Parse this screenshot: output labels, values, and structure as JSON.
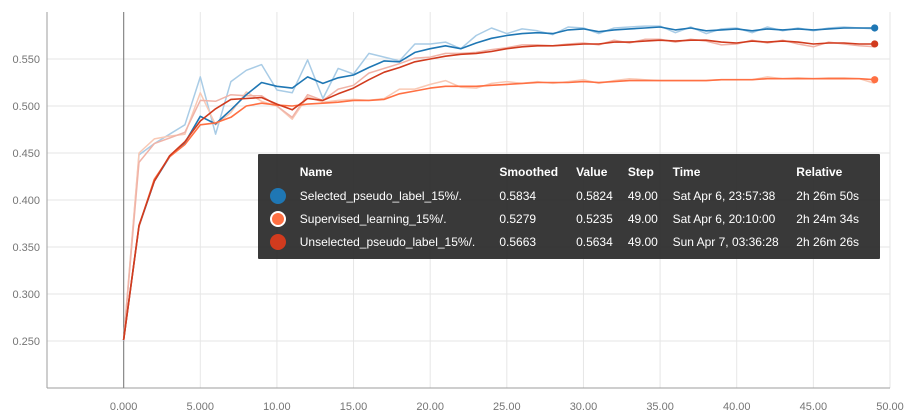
{
  "chart_data": {
    "type": "line",
    "xlim": [
      -5,
      50
    ],
    "ylim": [
      0.2,
      0.6
    ],
    "x_ticks": [
      "0.000",
      "5.000",
      "10.00",
      "15.00",
      "20.00",
      "25.00",
      "30.00",
      "35.00",
      "40.00",
      "45.00",
      "50.00"
    ],
    "x_tick_values": [
      0,
      5,
      10,
      15,
      20,
      25,
      30,
      35,
      40,
      45,
      50
    ],
    "y_ticks": [
      "0.250",
      "0.300",
      "0.350",
      "0.400",
      "0.450",
      "0.500",
      "0.550"
    ],
    "y_tick_values": [
      0.25,
      0.3,
      0.35,
      0.4,
      0.45,
      0.5,
      0.55
    ],
    "grid": true,
    "series": [
      {
        "name": "Selected_pseudo_label_15%/.",
        "color": "#1f77b4",
        "raw_color": "#a9cce6",
        "smoothed": [
          0.251,
          0.372,
          0.42,
          0.446,
          0.461,
          0.489,
          0.481,
          0.496,
          0.512,
          0.525,
          0.521,
          0.519,
          0.531,
          0.524,
          0.53,
          0.533,
          0.541,
          0.548,
          0.547,
          0.557,
          0.561,
          0.564,
          0.561,
          0.567,
          0.572,
          0.575,
          0.577,
          0.578,
          0.577,
          0.581,
          0.582,
          0.579,
          0.581,
          0.582,
          0.583,
          0.584,
          0.581,
          0.583,
          0.58,
          0.581,
          0.582,
          0.58,
          0.582,
          0.581,
          0.582,
          0.581,
          0.582,
          0.583,
          0.583,
          0.583
        ],
        "raw": [
          0.25,
          0.448,
          0.46,
          0.47,
          0.48,
          0.531,
          0.47,
          0.526,
          0.538,
          0.544,
          0.517,
          0.514,
          0.549,
          0.508,
          0.54,
          0.534,
          0.556,
          0.552,
          0.548,
          0.566,
          0.566,
          0.568,
          0.561,
          0.575,
          0.583,
          0.577,
          0.582,
          0.58,
          0.576,
          0.584,
          0.583,
          0.577,
          0.583,
          0.584,
          0.585,
          0.585,
          0.578,
          0.584,
          0.577,
          0.582,
          0.583,
          0.578,
          0.584,
          0.58,
          0.583,
          0.58,
          0.583,
          0.584,
          0.583,
          0.582
        ]
      },
      {
        "name": "Supervised_learning_15%/.",
        "color": "#ff7043",
        "raw_color": "#f9c9b5",
        "smoothed": [
          0.251,
          0.372,
          0.422,
          0.446,
          0.459,
          0.48,
          0.482,
          0.488,
          0.5,
          0.503,
          0.501,
          0.5,
          0.502,
          0.503,
          0.504,
          0.506,
          0.506,
          0.507,
          0.513,
          0.516,
          0.519,
          0.521,
          0.521,
          0.521,
          0.522,
          0.523,
          0.524,
          0.525,
          0.525,
          0.525,
          0.526,
          0.525,
          0.526,
          0.527,
          0.527,
          0.527,
          0.527,
          0.527,
          0.527,
          0.528,
          0.528,
          0.528,
          0.529,
          0.529,
          0.529,
          0.529,
          0.529,
          0.529,
          0.529,
          0.528
        ],
        "raw": [
          0.251,
          0.45,
          0.465,
          0.468,
          0.47,
          0.514,
          0.48,
          0.493,
          0.515,
          0.505,
          0.5,
          0.486,
          0.51,
          0.504,
          0.506,
          0.507,
          0.506,
          0.508,
          0.518,
          0.518,
          0.523,
          0.527,
          0.52,
          0.519,
          0.524,
          0.526,
          0.524,
          0.526,
          0.524,
          0.526,
          0.528,
          0.524,
          0.527,
          0.529,
          0.528,
          0.527,
          0.527,
          0.527,
          0.527,
          0.528,
          0.528,
          0.528,
          0.531,
          0.529,
          0.53,
          0.529,
          0.53,
          0.53,
          0.529,
          0.524
        ]
      },
      {
        "name": "Unselected_pseudo_label_15%/.",
        "color": "#d13b1e",
        "raw_color": "#f0b3a7",
        "smoothed": [
          0.251,
          0.373,
          0.42,
          0.447,
          0.462,
          0.484,
          0.497,
          0.507,
          0.508,
          0.509,
          0.502,
          0.496,
          0.508,
          0.506,
          0.513,
          0.519,
          0.528,
          0.536,
          0.541,
          0.547,
          0.55,
          0.553,
          0.555,
          0.556,
          0.558,
          0.561,
          0.563,
          0.564,
          0.564,
          0.565,
          0.566,
          0.566,
          0.568,
          0.568,
          0.569,
          0.57,
          0.569,
          0.57,
          0.57,
          0.568,
          0.567,
          0.569,
          0.568,
          0.569,
          0.568,
          0.566,
          0.567,
          0.567,
          0.566,
          0.566
        ],
        "raw": [
          0.251,
          0.44,
          0.46,
          0.466,
          0.472,
          0.506,
          0.505,
          0.512,
          0.511,
          0.511,
          0.5,
          0.488,
          0.512,
          0.506,
          0.518,
          0.522,
          0.535,
          0.54,
          0.545,
          0.551,
          0.552,
          0.556,
          0.556,
          0.557,
          0.56,
          0.562,
          0.565,
          0.565,
          0.564,
          0.566,
          0.567,
          0.565,
          0.57,
          0.567,
          0.571,
          0.571,
          0.568,
          0.571,
          0.569,
          0.565,
          0.566,
          0.57,
          0.567,
          0.57,
          0.566,
          0.563,
          0.568,
          0.566,
          0.564,
          0.563
        ]
      }
    ]
  },
  "tooltip": {
    "headers": {
      "name": "Name",
      "smoothed": "Smoothed",
      "value": "Value",
      "step": "Step",
      "time": "Time",
      "relative": "Relative"
    },
    "rows": [
      {
        "name": "Selected_pseudo_label_15%/.",
        "smoothed": "0.5834",
        "value": "0.5824",
        "step": "49.00",
        "time": "Sat Apr 6, 23:57:38",
        "relative": "2h 26m 50s",
        "color": "#1f77b4",
        "ring": "#1f77b4"
      },
      {
        "name": "Supervised_learning_15%/.",
        "smoothed": "0.5279",
        "value": "0.5235",
        "step": "49.00",
        "time": "Sat Apr 6, 20:10:00",
        "relative": "2h 24m 34s",
        "color": "#ff7043",
        "ring": "#ffffff"
      },
      {
        "name": "Unselected_pseudo_label_15%/.",
        "smoothed": "0.5663",
        "value": "0.5634",
        "step": "49.00",
        "time": "Sun Apr 7, 03:36:28",
        "relative": "2h 26m 26s",
        "color": "#d13b1e",
        "ring": "#d13b1e"
      }
    ]
  }
}
